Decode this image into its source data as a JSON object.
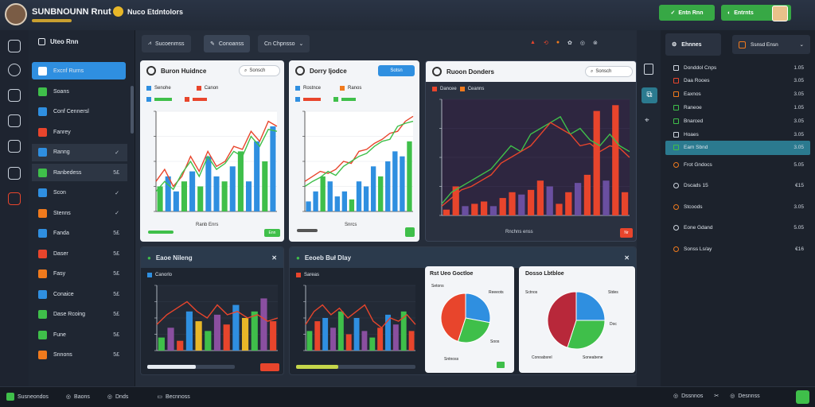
{
  "app": {
    "title": "SUNBNOUNN Rnut",
    "workspace": "Nuco Etdntolors"
  },
  "topbar": {
    "btn_primary": "Entn Rnn",
    "btn_secondary": "Entrnts"
  },
  "tabs": [
    {
      "label": "Sucoenmss"
    },
    {
      "label": "Conoanss"
    },
    {
      "label": "Cn Chpnsso"
    }
  ],
  "sidebar": {
    "header": "Uteo Rnn",
    "items": [
      {
        "label": "Excnf Rurns",
        "tail": "",
        "color": "#2f8fe0"
      },
      {
        "label": "Soans",
        "tail": "",
        "color": "#3fbf4a"
      },
      {
        "label": "Conf Cennersl",
        "tail": "",
        "color": "#2f8fe0"
      },
      {
        "label": "Fanrey",
        "tail": "",
        "color": "#e8452c"
      },
      {
        "label": "Ranng",
        "tail": "✓",
        "color": "#2f8fe0"
      },
      {
        "label": "Ranbedess",
        "tail": "5£",
        "color": "#3fbf4a"
      },
      {
        "label": "Scon",
        "tail": "✓",
        "color": "#2f8fe0"
      },
      {
        "label": "Stenns",
        "tail": "✓",
        "color": "#f07a1d"
      },
      {
        "label": "Fanda",
        "tail": "5£",
        "color": "#2f8fe0"
      },
      {
        "label": "Daser",
        "tail": "5£",
        "color": "#e8452c"
      },
      {
        "label": "Fasy",
        "tail": "5£",
        "color": "#f07a1d"
      },
      {
        "label": "Conaice",
        "tail": "5£",
        "color": "#2f8fe0"
      },
      {
        "label": "Dase Rcoing",
        "tail": "5£",
        "color": "#3fbf4a"
      },
      {
        "label": "Fune",
        "tail": "5£",
        "color": "#3fbf4a"
      },
      {
        "label": "Snnons",
        "tail": "5£",
        "color": "#f07a1d"
      }
    ]
  },
  "panels": {
    "p1": {
      "title": "Buron Huidnce",
      "search": "Sonsch",
      "legend": [
        "Senohe",
        "Canon"
      ],
      "footer": "Ranb Enrs",
      "btn": "Enn"
    },
    "p2": {
      "title": "Dorry ljodce",
      "action": "Sotsn",
      "legend": [
        "Rostnce",
        "Ranos"
      ],
      "footer": "Snrcs"
    },
    "p3": {
      "title": "Ruoon Donders",
      "search": "Sonsch",
      "legend": [
        "Dancee",
        "Ceanns"
      ],
      "footer": "Rnchns enss",
      "btn": "Nr"
    },
    "p4": {
      "title": "Eaoe Nileng",
      "legend": [
        "Canorlo"
      ]
    },
    "p5": {
      "title": "Eeoeb Buł Dlay",
      "legend": [
        "Sareas"
      ]
    },
    "p6": {
      "title": "Rst Ueo Goctloe",
      "labels": [
        "Setons",
        "Reeeots",
        "Soos"
      ],
      "footer": "Sntnoss"
    },
    "p7": {
      "title": "Dosso Lbtbloe",
      "labels": [
        "Sctnos",
        "Stdes",
        "Doc"
      ],
      "footer": [
        "Conoabsrel",
        "Soneabene"
      ]
    }
  },
  "rightpanel": {
    "title": "Ehnnes",
    "badge": "Ssnsd Ensn",
    "items": [
      {
        "label": "Donddol Cnps",
        "value": "1.05"
      },
      {
        "label": "Daa Rooes",
        "value": "3.05"
      },
      {
        "label": "Eaxnos",
        "value": "3.05"
      },
      {
        "label": "Raneoe",
        "value": "1.05"
      },
      {
        "label": "Bnarced",
        "value": "3.05"
      },
      {
        "label": "Hoaes",
        "value": "3.05"
      },
      {
        "label": "Eam Sbnd",
        "value": "3.05"
      },
      {
        "label": "Frot Gndocs",
        "value": "5.05"
      },
      {
        "label": "Dscads 15",
        "value": "€15"
      },
      {
        "label": "Stcoods",
        "value": "3.05"
      },
      {
        "label": "Eone Gdand",
        "value": "5.05"
      },
      {
        "label": "Sonss Ls/ay",
        "value": "€16"
      }
    ]
  },
  "statusbar": {
    "left": [
      "Susneondos",
      "Baons",
      "Dnds",
      "Becnnoss"
    ],
    "right": [
      "Dssnnos",
      "Desnnss"
    ]
  },
  "colors": {
    "blue": "#2f8fe0",
    "green": "#3fbf4a",
    "red": "#e8452c",
    "orange": "#f07a1d",
    "teal": "#2b7a8f"
  }
}
